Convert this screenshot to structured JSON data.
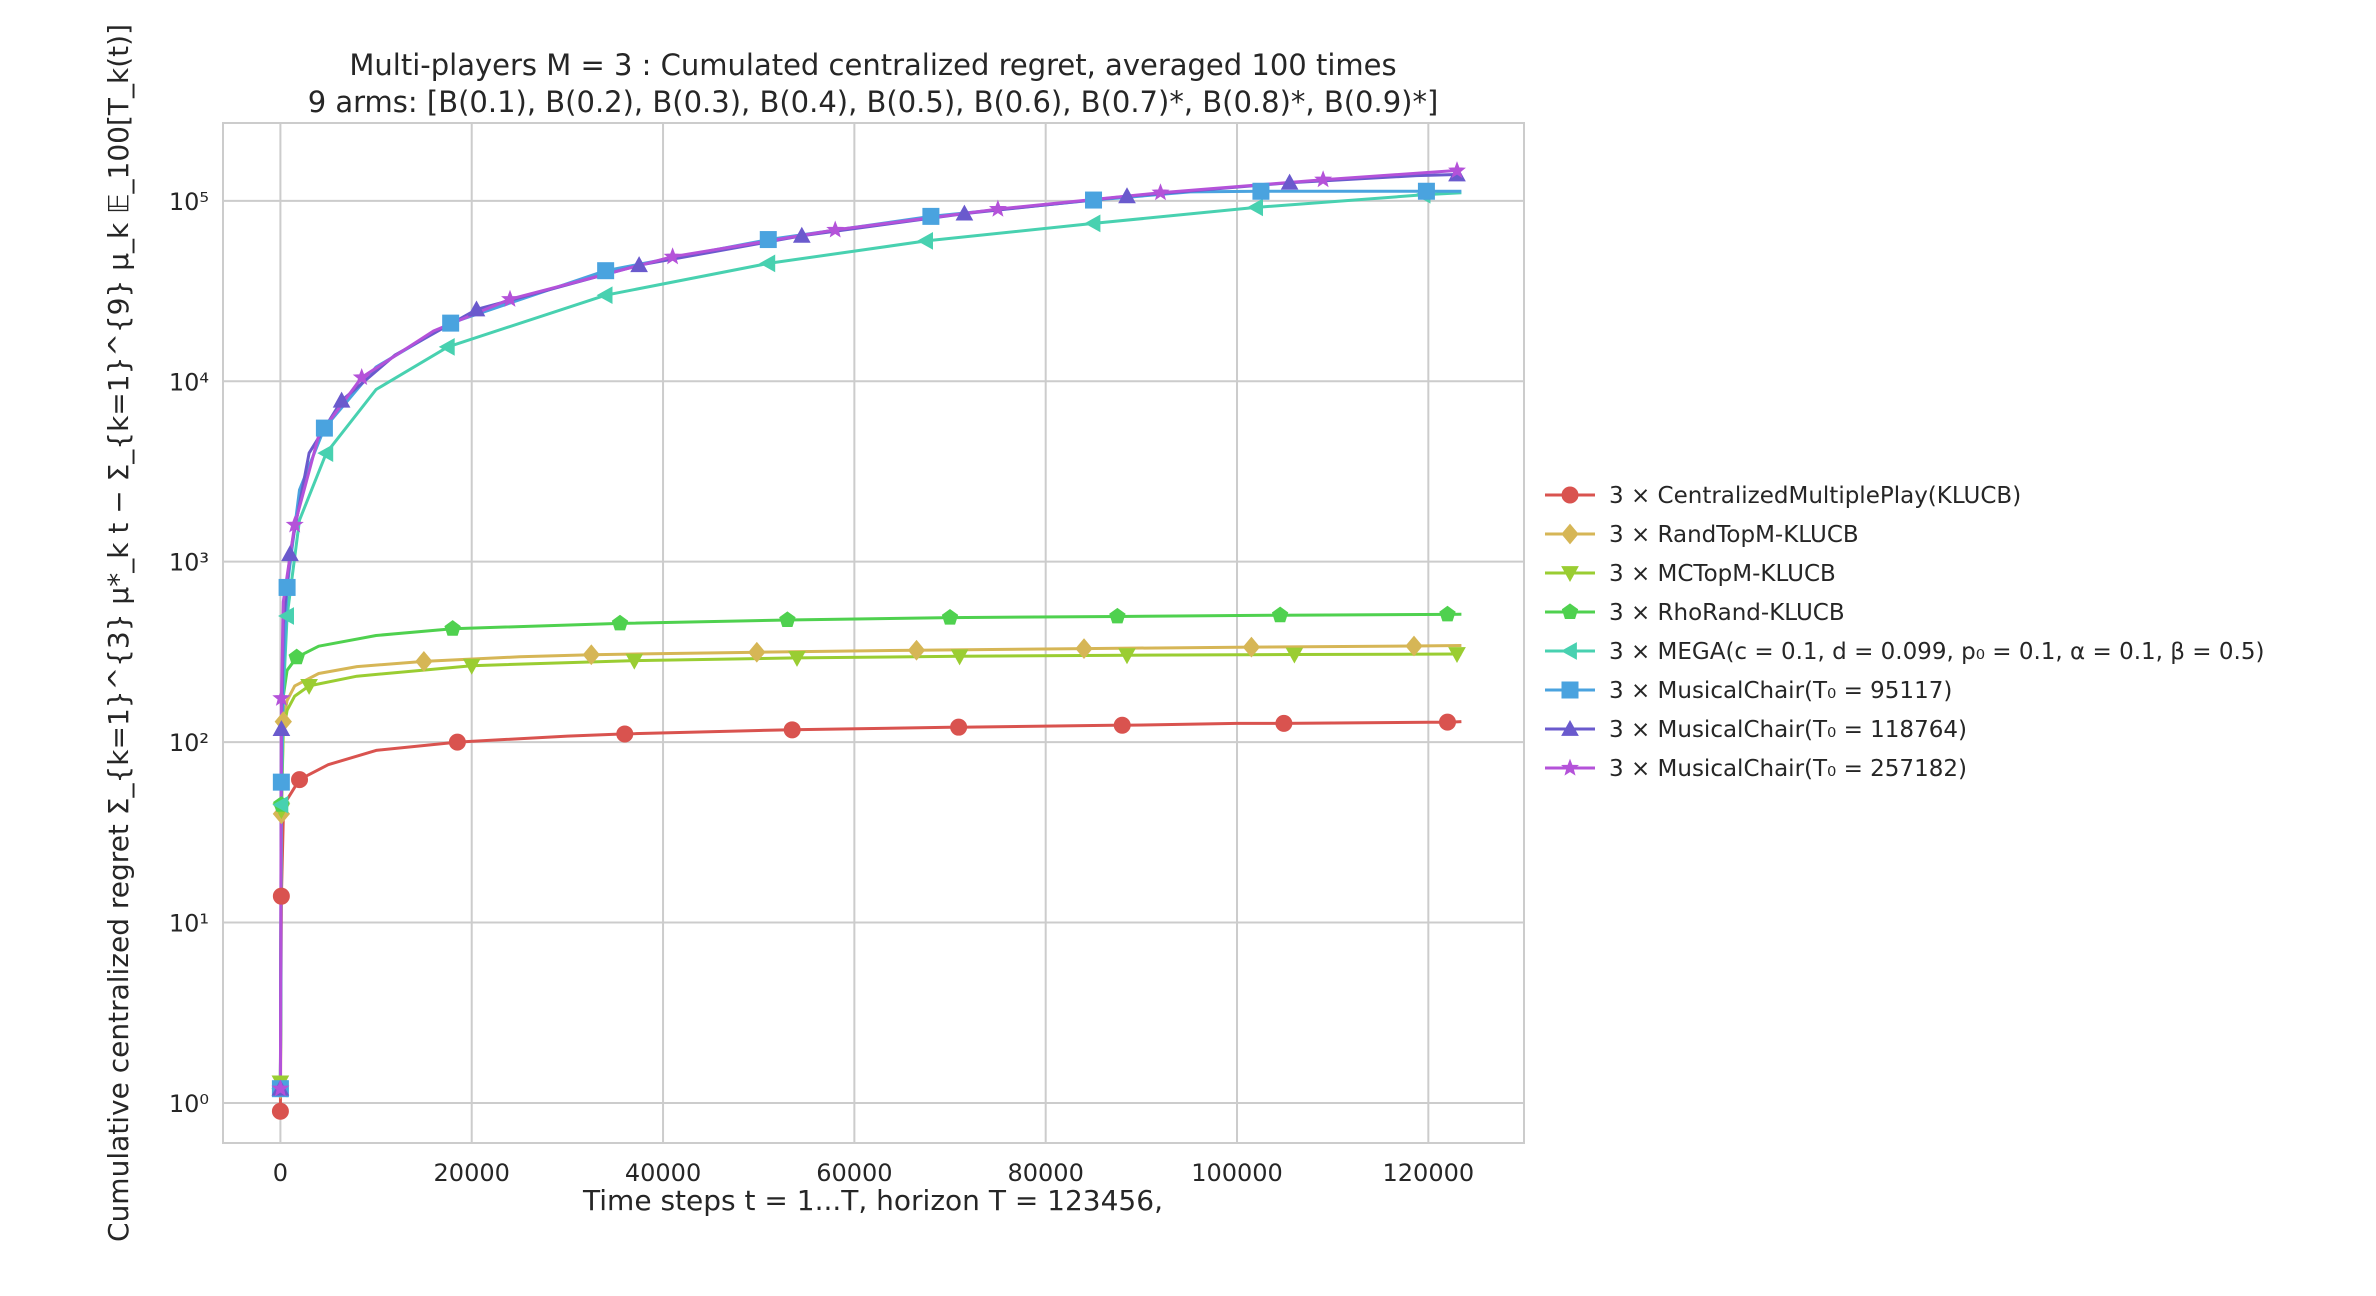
{
  "chart_data": {
    "type": "line",
    "title": "Multi-players M = 3 : Cumulated centralized regret, averaged 100 times",
    "subtitle": "9 arms: [B(0.1), B(0.2), B(0.3), B(0.4), B(0.5), B(0.6), B(0.7)*, B(0.8)*, B(0.9)*]",
    "xlabel": "Time steps t = 1...T, horizon T = 123456,",
    "ylabel": "Cumulative centralized regret Σ_{k=1}^{3} μ*_k t − Σ_{k=1}^{9} μ_k 𝔼_100[T_k(t)]",
    "x_scale": "linear",
    "y_scale": "log",
    "xlim": [
      -6000,
      130000
    ],
    "ylim": [
      0.6,
      270000
    ],
    "x_ticks": [
      0,
      20000,
      40000,
      60000,
      80000,
      100000,
      120000
    ],
    "x_tick_labels": [
      "0",
      "20000",
      "40000",
      "60000",
      "80000",
      "100000",
      "120000"
    ],
    "y_ticks": [
      1,
      10,
      100,
      1000,
      10000,
      100000
    ],
    "y_tick_labels": [
      "10⁰",
      "10¹",
      "10²",
      "10³",
      "10⁴",
      "10⁵"
    ],
    "grid": true,
    "legend_position": "right-outside",
    "series": [
      {
        "name": "3 × CentralizedMultiplePlay(KLUCB)",
        "color": "#d9534f",
        "marker": "circle",
        "x": [
          1,
          100,
          300,
          700,
          2000,
          5000,
          10000,
          18500,
          30000,
          36000,
          50000,
          53500,
          70000,
          70900,
          87000,
          88000,
          100000,
          104900,
          120000,
          122000,
          123456
        ],
        "y": [
          0.9,
          14,
          38,
          48,
          62,
          75,
          90,
          100,
          108,
          111,
          116,
          117,
          121,
          121,
          124,
          124,
          127,
          127,
          129,
          129,
          130
        ],
        "marker_x": [
          1,
          100,
          2000,
          18500,
          36000,
          53500,
          70900,
          88000,
          104900,
          122000
        ],
        "marker_y": [
          0.9,
          14,
          62,
          100,
          111,
          117,
          121,
          124,
          127,
          129
        ]
      },
      {
        "name": "3 × RandTopM-KLUCB",
        "color": "#d6b656",
        "marker": "diamond",
        "x": [
          1,
          100,
          300,
          700,
          1500,
          4000,
          8000,
          15000,
          25000,
          32500,
          50000,
          66500,
          84000,
          101500,
          118500,
          123456
        ],
        "y": [
          1.2,
          40,
          130,
          170,
          205,
          240,
          262,
          280,
          297,
          305,
          315,
          323,
          330,
          336,
          341,
          343
        ],
        "marker_x": [
          1,
          100,
          300,
          15000,
          32500,
          49800,
          66500,
          84000,
          101500,
          118500
        ],
        "marker_y": [
          1.2,
          40,
          130,
          280,
          305,
          315,
          323,
          330,
          336,
          341
        ]
      },
      {
        "name": "3 × MCTopM-KLUCB",
        "color": "#9acd32",
        "marker": "triangle-down",
        "x": [
          1,
          100,
          300,
          700,
          1500,
          3000,
          8000,
          20000,
          37000,
          54000,
          71000,
          88500,
          106000,
          123456
        ],
        "y": [
          1.3,
          42,
          115,
          150,
          180,
          205,
          232,
          265,
          283,
          293,
          299,
          303,
          306,
          308
        ],
        "marker_x": [
          1,
          100,
          3000,
          20000,
          37000,
          54000,
          71000,
          88500,
          106000,
          123000
        ],
        "marker_y": [
          1.3,
          42,
          205,
          265,
          283,
          293,
          299,
          303,
          306,
          308
        ]
      },
      {
        "name": "3 × RhoRand-KLUCB",
        "color": "#4fd14f",
        "marker": "pentagon",
        "x": [
          1,
          100,
          300,
          700,
          1700,
          4000,
          10000,
          18000,
          35500,
          53000,
          70000,
          87500,
          104500,
          122000,
          123456
        ],
        "y": [
          1.2,
          45,
          180,
          250,
          295,
          340,
          390,
          425,
          455,
          475,
          490,
          497,
          505,
          510,
          511
        ],
        "marker_x": [
          1,
          100,
          1700,
          18000,
          35500,
          53000,
          70000,
          87500,
          104500,
          122000
        ],
        "marker_y": [
          1.2,
          45,
          295,
          425,
          455,
          475,
          490,
          497,
          505,
          510
        ]
      },
      {
        "name": "3 × MEGA(c = 0.1, d = 0.099, p₀ = 0.1, α = 0.1, β = 0.5)",
        "color": "#48d1b0",
        "marker": "triangle-left",
        "x": [
          1,
          100,
          300,
          700,
          2000,
          4800,
          10000,
          17500,
          34000,
          51000,
          67500,
          85000,
          102000,
          119500,
          123456
        ],
        "y": [
          1.2,
          45,
          180,
          500,
          1700,
          4000,
          9000,
          15500,
          30000,
          45000,
          60000,
          75000,
          92000,
          108000,
          111000
        ],
        "marker_x": [
          1,
          100,
          700,
          4800,
          17500,
          34000,
          51000,
          67500,
          85000,
          102000,
          119500
        ],
        "marker_y": [
          1.2,
          45,
          500,
          4000,
          15500,
          30000,
          45000,
          60000,
          75000,
          92000,
          108000
        ]
      },
      {
        "name": "3 × MusicalChair(T₀ = 95117)",
        "color": "#4aa3df",
        "marker": "square",
        "x": [
          1,
          100,
          300,
          700,
          2000,
          4600,
          10000,
          17800,
          34000,
          51000,
          68000,
          85000,
          95117,
          102500,
          119800,
          123456
        ],
        "y": [
          1.2,
          60,
          250,
          720,
          2500,
          5500,
          12000,
          21000,
          41000,
          61000,
          82000,
          101000,
          112000,
          113000,
          113000,
          113000
        ],
        "marker_x": [
          1,
          100,
          700,
          4600,
          17800,
          34000,
          51000,
          68000,
          85000,
          102500,
          119800
        ],
        "marker_y": [
          1.2,
          60,
          720,
          5500,
          21000,
          41000,
          61000,
          82000,
          101000,
          113000,
          113000
        ]
      },
      {
        "name": "3 × MusicalChair(T₀ = 118764)",
        "color": "#6a5acd",
        "marker": "triangle-up",
        "x": [
          1,
          100,
          300,
          1000,
          3000,
          6400,
          12000,
          20500,
          37500,
          54500,
          71500,
          88500,
          105500,
          118764,
          123000,
          123456
        ],
        "y": [
          1.2,
          118,
          450,
          1100,
          4000,
          7800,
          14000,
          25000,
          44000,
          64000,
          85000,
          106000,
          126000,
          138000,
          140000,
          140000
        ],
        "marker_x": [
          1,
          100,
          1000,
          6400,
          20500,
          37500,
          54500,
          71500,
          88500,
          105500,
          123000
        ],
        "marker_y": [
          1.2,
          118,
          1100,
          7800,
          25000,
          44000,
          64000,
          85000,
          106000,
          126000,
          140000
        ]
      },
      {
        "name": "3 × MusicalChair(T₀ = 257182)",
        "color": "#b452d9",
        "marker": "star",
        "x": [
          1,
          100,
          300,
          1500,
          4000,
          8500,
          16000,
          24000,
          41000,
          58000,
          75000,
          92000,
          109000,
          123456
        ],
        "y": [
          1.2,
          175,
          600,
          1600,
          5000,
          10500,
          19000,
          28500,
          49000,
          69000,
          90000,
          111000,
          131000,
          148000
        ],
        "marker_x": [
          1,
          100,
          1500,
          8500,
          24000,
          41000,
          58000,
          75000,
          92000,
          109000,
          123000
        ],
        "marker_y": [
          1.2,
          175,
          1600,
          10500,
          28500,
          49000,
          69000,
          90000,
          111000,
          131000,
          147000
        ]
      }
    ]
  }
}
